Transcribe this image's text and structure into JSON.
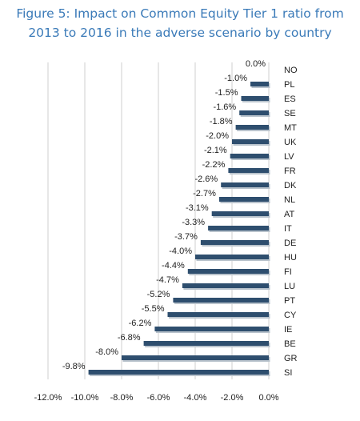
{
  "chart_data": {
    "type": "bar",
    "orientation": "horizontal",
    "title": "Figure 5: Impact on Common Equity Tier 1 ratio from 2013 to 2016 in the adverse scenario by  country",
    "title_lines": [
      "Figure 5: Impact on Common Equity Tier 1 ratio from",
      "2013 to 2016 in the adverse scenario by  country"
    ],
    "categories": [
      "NO",
      "PL",
      "ES",
      "SE",
      "MT",
      "UK",
      "LV",
      "FR",
      "DK",
      "NL",
      "AT",
      "IT",
      "DE",
      "HU",
      "FI",
      "LU",
      "PT",
      "CY",
      "IE",
      "BE",
      "GR",
      "SI"
    ],
    "values": [
      0.0,
      -1.0,
      -1.5,
      -1.6,
      -1.8,
      -2.0,
      -2.1,
      -2.2,
      -2.6,
      -2.7,
      -3.1,
      -3.3,
      -3.7,
      -4.0,
      -4.4,
      -4.7,
      -5.2,
      -5.5,
      -6.2,
      -6.8,
      -8.0,
      -9.8
    ],
    "data_labels": [
      "0.0%",
      "-1.0%",
      "-1.5%",
      "-1.6%",
      "-1.8%",
      "-2.0%",
      "-2.1%",
      "-2.2%",
      "-2.6%",
      "-2.7%",
      "-3.1%",
      "-3.3%",
      "-3.7%",
      "-4.0%",
      "-4.4%",
      "-4.7%",
      "-5.2%",
      "-5.5%",
      "-6.2%",
      "-6.8%",
      "-8.0%",
      "-9.8%"
    ],
    "xlim": [
      -12.0,
      0.0
    ],
    "xticks": [
      -12.0,
      -10.0,
      -8.0,
      -6.0,
      -4.0,
      -2.0,
      0.0
    ],
    "xtick_labels": [
      "-12.0%",
      "-10.0%",
      "-8.0%",
      "-6.0%",
      "-4.0%",
      "-2.0%",
      "0.0%"
    ],
    "grid": true,
    "bar_color": "#2e4e6e",
    "title_color": "#3a7ab8"
  }
}
